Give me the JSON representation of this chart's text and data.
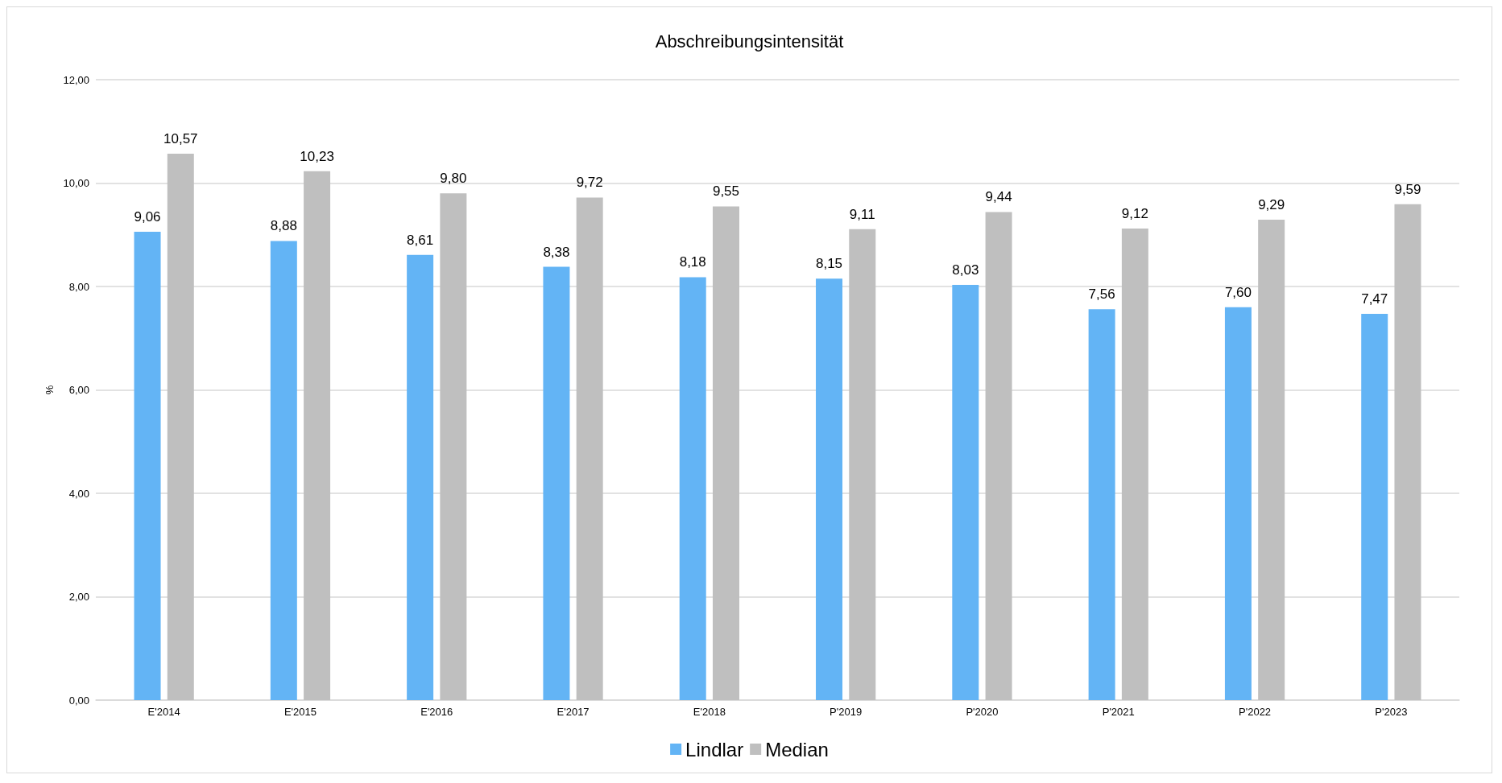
{
  "chart_data": {
    "type": "bar",
    "title": "Abschreibungsintensität",
    "ylabel": "%",
    "categories": [
      "E'2014",
      "E'2015",
      "E'2016",
      "E'2017",
      "E'2018",
      "P'2019",
      "P'2020",
      "P'2021",
      "P'2022",
      "P'2023"
    ],
    "series": [
      {
        "name": "Lindlar",
        "color": "#63b4f5",
        "values": [
          9.06,
          8.88,
          8.61,
          8.38,
          8.18,
          8.15,
          8.03,
          7.56,
          7.6,
          7.47
        ],
        "value_labels": [
          "9,06",
          "8,88",
          "8,61",
          "8,38",
          "8,18",
          "8,15",
          "8,03",
          "7,56",
          "7,60",
          "7,47"
        ]
      },
      {
        "name": "Median",
        "color": "#bfbfbf",
        "values": [
          10.57,
          10.23,
          9.8,
          9.72,
          9.55,
          9.11,
          9.44,
          9.12,
          9.29,
          9.59
        ],
        "value_labels": [
          "10,57",
          "10,23",
          "9,80",
          "9,72",
          "9,55",
          "9,11",
          "9,44",
          "9,12",
          "9,29",
          "9,59"
        ]
      }
    ],
    "ylim": [
      0,
      12
    ],
    "yticks": [
      {
        "value": 0,
        "label": "0,00"
      },
      {
        "value": 2,
        "label": "2,00"
      },
      {
        "value": 4,
        "label": "4,00"
      },
      {
        "value": 6,
        "label": "6,00"
      },
      {
        "value": 8,
        "label": "8,00"
      },
      {
        "value": 10,
        "label": "10,00"
      },
      {
        "value": 12,
        "label": "12,00"
      }
    ],
    "grid": "y",
    "legend": "bottom"
  }
}
